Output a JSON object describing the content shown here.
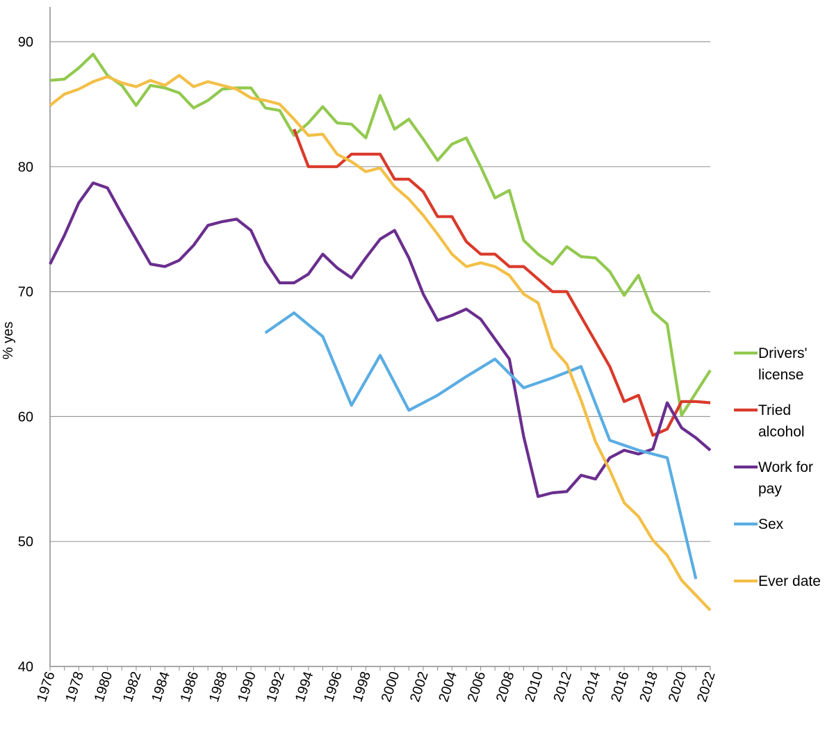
{
  "chart_data": {
    "type": "line",
    "title": "",
    "xlabel": "",
    "ylabel": "% yes",
    "xlim": [
      1976,
      2022
    ],
    "ylim": [
      40,
      90
    ],
    "yticks": [
      40,
      50,
      60,
      70,
      80,
      90
    ],
    "xticks": [
      1976,
      1978,
      1980,
      1982,
      1984,
      1986,
      1988,
      1990,
      1992,
      1994,
      1996,
      1998,
      2000,
      2002,
      2004,
      2006,
      2008,
      2010,
      2012,
      2014,
      2016,
      2018,
      2020,
      2022
    ],
    "grid": "horizontal",
    "legend_position": "right",
    "series": [
      {
        "name": "Drivers' license",
        "legend_lines": [
          "Drivers'",
          "license"
        ],
        "color": "#92c94f",
        "points": [
          [
            1976,
            86.9
          ],
          [
            1977,
            87.0
          ],
          [
            1978,
            87.9
          ],
          [
            1979,
            89.0
          ],
          [
            1980,
            87.3
          ],
          [
            1981,
            86.5
          ],
          [
            1982,
            84.9
          ],
          [
            1983,
            86.5
          ],
          [
            1984,
            86.3
          ],
          [
            1985,
            85.9
          ],
          [
            1986,
            84.7
          ],
          [
            1987,
            85.3
          ],
          [
            1988,
            86.2
          ],
          [
            1989,
            86.3
          ],
          [
            1990,
            86.3
          ],
          [
            1991,
            84.7
          ],
          [
            1992,
            84.5
          ],
          [
            1993,
            82.5
          ],
          [
            1994,
            83.5
          ],
          [
            1995,
            84.8
          ],
          [
            1996,
            83.5
          ],
          [
            1997,
            83.4
          ],
          [
            1998,
            82.3
          ],
          [
            1999,
            85.7
          ],
          [
            2000,
            83.0
          ],
          [
            2001,
            83.8
          ],
          [
            2002,
            82.2
          ],
          [
            2003,
            80.5
          ],
          [
            2004,
            81.8
          ],
          [
            2005,
            82.3
          ],
          [
            2006,
            80.0
          ],
          [
            2007,
            77.5
          ],
          [
            2008,
            78.1
          ],
          [
            2009,
            74.1
          ],
          [
            2010,
            73.0
          ],
          [
            2011,
            72.2
          ],
          [
            2012,
            73.6
          ],
          [
            2013,
            72.8
          ],
          [
            2014,
            72.7
          ],
          [
            2015,
            71.6
          ],
          [
            2016,
            69.7
          ],
          [
            2017,
            71.3
          ],
          [
            2018,
            68.4
          ],
          [
            2019,
            67.4
          ],
          [
            2020,
            60.1
          ],
          [
            2021,
            61.9
          ],
          [
            2022,
            63.7
          ]
        ]
      },
      {
        "name": "Tried alcohol",
        "legend_lines": [
          "Tried",
          "alcohol"
        ],
        "color": "#d93a2b",
        "points": [
          [
            1993,
            83.0
          ],
          [
            1994,
            80.0
          ],
          [
            1995,
            80.0
          ],
          [
            1996,
            80.0
          ],
          [
            1997,
            81.0
          ],
          [
            1998,
            81.0
          ],
          [
            1999,
            81.0
          ],
          [
            2000,
            79.0
          ],
          [
            2001,
            79.0
          ],
          [
            2002,
            78.0
          ],
          [
            2003,
            76.0
          ],
          [
            2004,
            76.0
          ],
          [
            2005,
            74.0
          ],
          [
            2006,
            73.0
          ],
          [
            2007,
            73.0
          ],
          [
            2008,
            72.0
          ],
          [
            2009,
            72.0
          ],
          [
            2010,
            71.0
          ],
          [
            2011,
            70.0
          ],
          [
            2012,
            70.0
          ],
          [
            2013,
            68.0
          ],
          [
            2014,
            66.0
          ],
          [
            2015,
            64.0
          ],
          [
            2016,
            61.2
          ],
          [
            2017,
            61.7
          ],
          [
            2018,
            58.5
          ],
          [
            2019,
            59.0
          ],
          [
            2020,
            61.2
          ],
          [
            2021,
            61.2
          ],
          [
            2022,
            61.1
          ]
        ]
      },
      {
        "name": "Work for pay",
        "legend_lines": [
          "Work for",
          "pay"
        ],
        "color": "#6a2e8e",
        "points": [
          [
            1976,
            72.2
          ],
          [
            1977,
            74.5
          ],
          [
            1978,
            77.1
          ],
          [
            1979,
            78.7
          ],
          [
            1980,
            78.3
          ],
          [
            1981,
            76.2
          ],
          [
            1982,
            74.2
          ],
          [
            1983,
            72.2
          ],
          [
            1984,
            72.0
          ],
          [
            1985,
            72.5
          ],
          [
            1986,
            73.7
          ],
          [
            1987,
            75.3
          ],
          [
            1988,
            75.6
          ],
          [
            1989,
            75.8
          ],
          [
            1990,
            74.9
          ],
          [
            1991,
            72.4
          ],
          [
            1992,
            70.7
          ],
          [
            1993,
            70.7
          ],
          [
            1994,
            71.4
          ],
          [
            1995,
            73.0
          ],
          [
            1996,
            71.9
          ],
          [
            1997,
            71.1
          ],
          [
            1998,
            72.7
          ],
          [
            1999,
            74.2
          ],
          [
            2000,
            74.9
          ],
          [
            2001,
            72.7
          ],
          [
            2002,
            69.8
          ],
          [
            2003,
            67.7
          ],
          [
            2004,
            68.1
          ],
          [
            2005,
            68.6
          ],
          [
            2006,
            67.8
          ],
          [
            2007,
            66.2
          ],
          [
            2008,
            64.6
          ],
          [
            2009,
            58.4
          ],
          [
            2010,
            53.6
          ],
          [
            2011,
            53.9
          ],
          [
            2012,
            54.0
          ],
          [
            2013,
            55.3
          ],
          [
            2014,
            55.0
          ],
          [
            2015,
            56.7
          ],
          [
            2016,
            57.3
          ],
          [
            2017,
            57.0
          ],
          [
            2018,
            57.4
          ],
          [
            2019,
            61.1
          ],
          [
            2020,
            59.1
          ],
          [
            2021,
            58.3
          ],
          [
            2022,
            57.3
          ]
        ]
      },
      {
        "name": "Sex",
        "legend_lines": [
          "Sex"
        ],
        "color": "#5aade3",
        "points": [
          [
            1991,
            66.7
          ],
          [
            1993,
            68.3
          ],
          [
            1995,
            66.4
          ],
          [
            1997,
            60.9
          ],
          [
            1999,
            64.9
          ],
          [
            2001,
            60.5
          ],
          [
            2003,
            61.7
          ],
          [
            2005,
            63.2
          ],
          [
            2007,
            64.6
          ],
          [
            2009,
            62.3
          ],
          [
            2011,
            63.1
          ],
          [
            2013,
            64.0
          ],
          [
            2015,
            58.1
          ],
          [
            2017,
            57.3
          ],
          [
            2019,
            56.7
          ],
          [
            2021,
            47.0
          ]
        ]
      },
      {
        "name": "Ever date",
        "legend_lines": [
          "Ever date"
        ],
        "color": "#f2bf47",
        "points": [
          [
            1976,
            84.9
          ],
          [
            1977,
            85.8
          ],
          [
            1978,
            86.2
          ],
          [
            1979,
            86.8
          ],
          [
            1980,
            87.2
          ],
          [
            1981,
            86.7
          ],
          [
            1982,
            86.4
          ],
          [
            1983,
            86.9
          ],
          [
            1984,
            86.5
          ],
          [
            1985,
            87.3
          ],
          [
            1986,
            86.4
          ],
          [
            1987,
            86.8
          ],
          [
            1988,
            86.5
          ],
          [
            1989,
            86.2
          ],
          [
            1990,
            85.5
          ],
          [
            1991,
            85.3
          ],
          [
            1992,
            85.0
          ],
          [
            1993,
            83.8
          ],
          [
            1994,
            82.5
          ],
          [
            1995,
            82.6
          ],
          [
            1996,
            81.0
          ],
          [
            1997,
            80.4
          ],
          [
            1998,
            79.6
          ],
          [
            1999,
            79.9
          ],
          [
            2000,
            78.4
          ],
          [
            2001,
            77.4
          ],
          [
            2002,
            76.1
          ],
          [
            2003,
            74.6
          ],
          [
            2004,
            73.0
          ],
          [
            2005,
            72.0
          ],
          [
            2006,
            72.3
          ],
          [
            2007,
            72.0
          ],
          [
            2008,
            71.3
          ],
          [
            2009,
            69.8
          ],
          [
            2010,
            69.1
          ],
          [
            2011,
            65.5
          ],
          [
            2012,
            64.2
          ],
          [
            2013,
            61.3
          ],
          [
            2014,
            58.0
          ],
          [
            2015,
            55.7
          ],
          [
            2016,
            53.1
          ],
          [
            2017,
            52.0
          ],
          [
            2018,
            50.1
          ],
          [
            2019,
            48.9
          ],
          [
            2020,
            46.9
          ],
          [
            2021,
            45.7
          ],
          [
            2022,
            44.5
          ]
        ]
      }
    ]
  }
}
